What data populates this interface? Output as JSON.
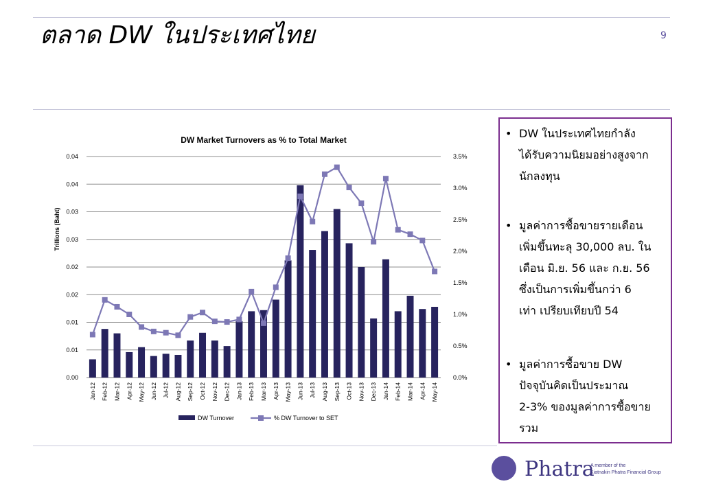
{
  "page": {
    "title": "ตลาด DW ในประเทศไทย",
    "page_number": "9"
  },
  "chart_data": {
    "type": "bar",
    "title": "DW Market Turnovers as % to Total Market",
    "ylabel": "Trillions (Baht)",
    "categories": [
      "Jan-12",
      "Feb-12",
      "Mar-12",
      "Apr-12",
      "May-12",
      "Jun-12",
      "Jul-12",
      "Aug-12",
      "Sep-12",
      "Oct-12",
      "Nov-12",
      "Dec-12",
      "Jan-13",
      "Feb-13",
      "Mar-13",
      "Apr-13",
      "May-13",
      "Jun-13",
      "Jul-13",
      "Aug-13",
      "Sep-13",
      "Oct-13",
      "Nov-13",
      "Dec-13",
      "Jan-14",
      "Feb-14",
      "Mar-14",
      "Apr-14",
      "May-14"
    ],
    "series": [
      {
        "name": "DW Turnover",
        "type": "bar",
        "axis": "left",
        "color": "#27235e",
        "values": [
          0.0033,
          0.0088,
          0.008,
          0.0046,
          0.0055,
          0.0039,
          0.0043,
          0.0041,
          0.0067,
          0.0081,
          0.0067,
          0.0057,
          0.0102,
          0.012,
          0.0122,
          0.0141,
          0.0212,
          0.0348,
          0.0231,
          0.0265,
          0.0305,
          0.0243,
          0.02,
          0.0107,
          0.0214,
          0.012,
          0.0148,
          0.0124,
          0.0128
        ]
      },
      {
        "name": "% DW Turnover to SET",
        "type": "line",
        "axis": "right",
        "color": "#7d78b5",
        "values": [
          0.68,
          1.23,
          1.12,
          1.0,
          0.8,
          0.73,
          0.71,
          0.67,
          0.96,
          1.03,
          0.89,
          0.88,
          0.92,
          1.36,
          0.86,
          1.43,
          1.89,
          2.87,
          2.47,
          3.22,
          3.33,
          3.01,
          2.76,
          2.15,
          3.15,
          2.34,
          2.27,
          2.17,
          1.68
        ]
      }
    ],
    "y_left": {
      "min": 0,
      "max": 0.04,
      "ticks": [
        "0.00",
        "0.01",
        "0.01",
        "0.02",
        "0.02",
        "0.03",
        "0.03",
        "0.04",
        "0.04"
      ]
    },
    "y_right": {
      "min": 0,
      "max": 3.5,
      "ticks": [
        "0.0%",
        "0.5%",
        "1.0%",
        "1.5%",
        "2.0%",
        "2.5%",
        "3.0%",
        "3.5%"
      ]
    },
    "grid": true,
    "legend": "bottom"
  },
  "bullets": [
    {
      "marker": "•",
      "text": "DW ในประเทศไทยกำลัง\nได้รับความนิยมอย่างสูงจาก\nนักลงทุน"
    },
    {
      "marker": "•",
      "text": "มูลค่าการซื้อขายรายเดือน\nเพิ่มขึ้นทะลุ 30,000 ลบ. ใน\nเดือน มิ.ย. 56 และ ก.ย. 56\nซึ่งเป็นการเพิ่มขึ้นกว่า 6\nเท่า เปรียบเทียบปี 54"
    },
    {
      "marker": "•",
      "text": "มูลค่าการซื้อขาย DW\nปัจจุบันคิดเป็นประมาณ\n2-3% ของมูลค่าการซื้อขาย\nรวม"
    }
  ],
  "logo": {
    "name": "Phatra",
    "tagline_1": "A member of the",
    "tagline_2": "Kiatnakin Phatra Financial Group"
  },
  "colors": {
    "accent": "#5b4f9e",
    "box_border": "#7b2d8e",
    "bar": "#27235e",
    "line": "#7d78b5"
  }
}
